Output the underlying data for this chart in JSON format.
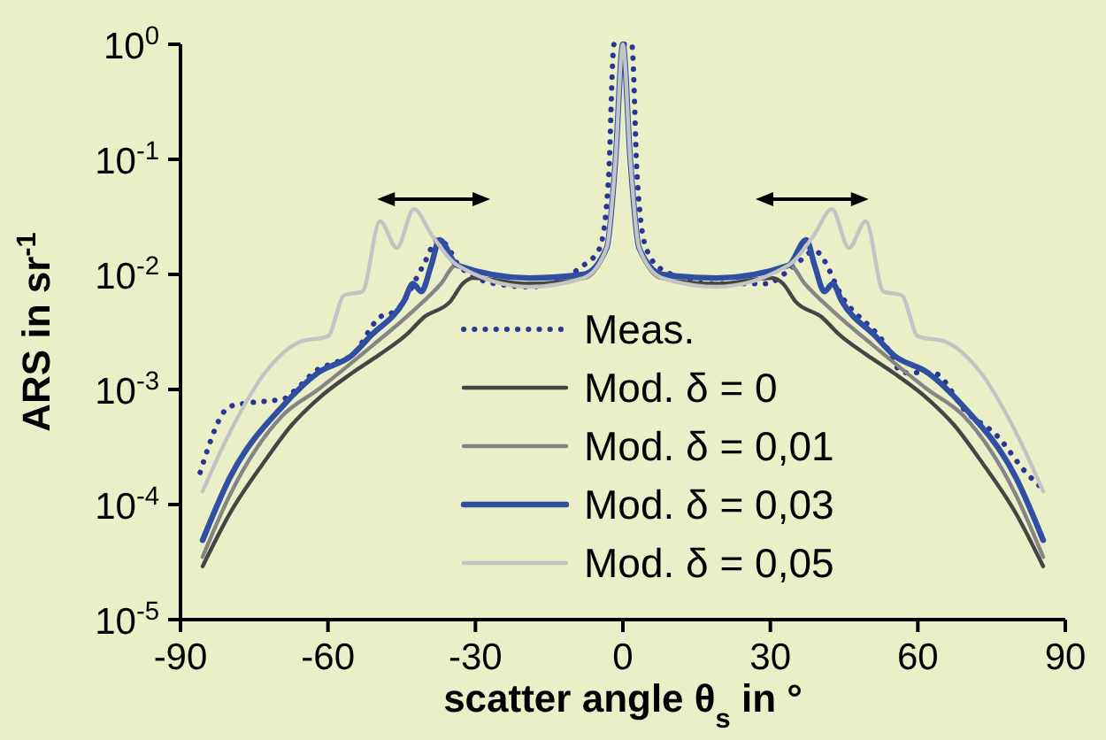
{
  "chart_data": {
    "type": "line",
    "xlabel": "scatter angle θ$_{s}$ in °",
    "ylabel": "ARS in sr$^{-1}$",
    "log": "y",
    "xlim": [
      -90,
      90
    ],
    "ylim": [
      1e-05,
      1
    ],
    "xticks": [
      -90,
      -60,
      -30,
      0,
      30,
      60,
      90
    ],
    "yticks": [
      {
        "value": 1,
        "label": "10$^{0}$"
      },
      {
        "value": 0.1,
        "label": "10$^{-1}$"
      },
      {
        "value": 0.01,
        "label": "10$^{-2}$"
      },
      {
        "value": 0.001,
        "label": "10$^{-3}$"
      },
      {
        "value": 0.0001,
        "label": "10$^{-4}$"
      },
      {
        "value": 1e-05,
        "label": "10$^{-5}$"
      }
    ],
    "grid": false,
    "legend": "bottom",
    "series": [
      {
        "name": "Meas.",
        "color": "#2b3596",
        "line_style": "dotted",
        "x": [
          -86,
          -80,
          -76.5,
          -69,
          -66.5,
          -62,
          -58.7,
          -55,
          -49.6,
          -46,
          -40.6,
          -37.7,
          -35.9,
          -33.4,
          -26,
          -19,
          -8,
          -4.7,
          -2.9,
          -1.8,
          0,
          1.8,
          2.9,
          4.7,
          8,
          18,
          29,
          35,
          39,
          45,
          53,
          57,
          63,
          70,
          76,
          82,
          86
        ],
        "values": [
          0.00019,
          0.00071,
          0.00076,
          0.00083,
          0.001,
          0.0015,
          0.0017,
          0.002,
          0.0042,
          0.0049,
          0.012,
          0.02,
          0.018,
          0.012,
          0.0083,
          0.0078,
          0.012,
          0.017,
          0.071,
          1,
          1,
          1,
          0.071,
          0.017,
          0.011,
          0.0083,
          0.0083,
          0.012,
          0.016,
          0.006,
          0.0026,
          0.0014,
          0.0014,
          0.00063,
          0.0004,
          0.00019,
          0.00013
        ]
      },
      {
        "name": "Mod. δ = 0",
        "color": "#454545",
        "line_style": "solid",
        "x": [
          -85.5,
          -80,
          -72.8,
          -67.4,
          -62,
          -55,
          -49.6,
          -44,
          -40.6,
          -35,
          -32.6,
          -30.5,
          -19,
          -8,
          -3.3,
          -1.5,
          0,
          1.5,
          3.3,
          8,
          19,
          30.5,
          32.6,
          35,
          40.6,
          44,
          49.6,
          55,
          62,
          67.4,
          72.8,
          80,
          85.5
        ],
        "values": [
          2.9e-05,
          8.3e-05,
          0.00024,
          0.00049,
          0.00083,
          0.0014,
          0.002,
          0.003,
          0.0042,
          0.0059,
          0.0083,
          0.0093,
          0.0083,
          0.0093,
          0.017,
          0.1,
          1,
          0.1,
          0.017,
          0.0093,
          0.0083,
          0.0093,
          0.0083,
          0.0059,
          0.0042,
          0.003,
          0.002,
          0.0014,
          0.00083,
          0.00049,
          0.00024,
          8.3e-05,
          2.9e-05
        ]
      },
      {
        "name": "Mod. δ = 0,01",
        "color": "#858585",
        "line_style": "solid",
        "x": [
          -85.5,
          -80,
          -69.3,
          -62,
          -51,
          -42.5,
          -37,
          -34,
          -31.5,
          -19,
          -8,
          -3.3,
          -1.5,
          0,
          1.5,
          3.3,
          8,
          19,
          31.5,
          34,
          37,
          42.5,
          51,
          62,
          69.3,
          80,
          85.5
        ],
        "values": [
          3.5e-05,
          0.00012,
          0.00059,
          0.001,
          0.0024,
          0.0049,
          0.0083,
          0.012,
          0.011,
          0.0093,
          0.0093,
          0.017,
          0.1,
          1,
          0.1,
          0.017,
          0.0093,
          0.0093,
          0.011,
          0.012,
          0.0083,
          0.0049,
          0.0024,
          0.001,
          0.00059,
          0.00012,
          3.5e-05
        ]
      },
      {
        "name": "Mod. δ = 0,03",
        "color": "#2f4fa2",
        "line_style": "solid",
        "x": [
          -85.5,
          -80,
          -69.3,
          -62,
          -55,
          -51.4,
          -44.5,
          -42.7,
          -41,
          -39,
          -37.3,
          -33.7,
          -19,
          -8,
          -3.3,
          -1.5,
          0,
          1.5,
          3.3,
          8,
          19,
          33.7,
          37.3,
          39,
          41,
          42.7,
          44.5,
          51.4,
          55,
          62,
          69.3,
          80,
          85.5
        ],
        "values": [
          4.9e-05,
          0.00017,
          0.00071,
          0.0014,
          0.002,
          0.0029,
          0.0059,
          0.0083,
          0.0071,
          0.012,
          0.02,
          0.012,
          0.0093,
          0.01,
          0.017,
          0.1,
          1,
          0.1,
          0.017,
          0.01,
          0.0093,
          0.012,
          0.02,
          0.012,
          0.0071,
          0.0083,
          0.0059,
          0.0029,
          0.002,
          0.0014,
          0.00071,
          0.00017,
          4.9e-05
        ]
      },
      {
        "name": "Mod. δ = 0,05",
        "color": "#c4c4c4",
        "line_style": "solid",
        "x": [
          -85.5,
          -80,
          -72.8,
          -65.6,
          -60,
          -56.7,
          -53,
          -49.4,
          -46,
          -42.5,
          -38.9,
          -33.7,
          -19,
          -8,
          -3.3,
          -1.5,
          0,
          1.5,
          3.3,
          8,
          19,
          33.7,
          38.9,
          42.5,
          46,
          49.4,
          53,
          56.7,
          60,
          65.6,
          72.8,
          80,
          85.5
        ],
        "values": [
          0.00013,
          0.00042,
          0.0014,
          0.0026,
          0.0029,
          0.0066,
          0.0071,
          0.029,
          0.017,
          0.037,
          0.022,
          0.012,
          0.0078,
          0.0093,
          0.017,
          0.1,
          1,
          0.1,
          0.017,
          0.0093,
          0.0078,
          0.012,
          0.022,
          0.037,
          0.017,
          0.029,
          0.0071,
          0.0066,
          0.0029,
          0.0026,
          0.0014,
          0.00042,
          0.00013
        ]
      }
    ]
  }
}
